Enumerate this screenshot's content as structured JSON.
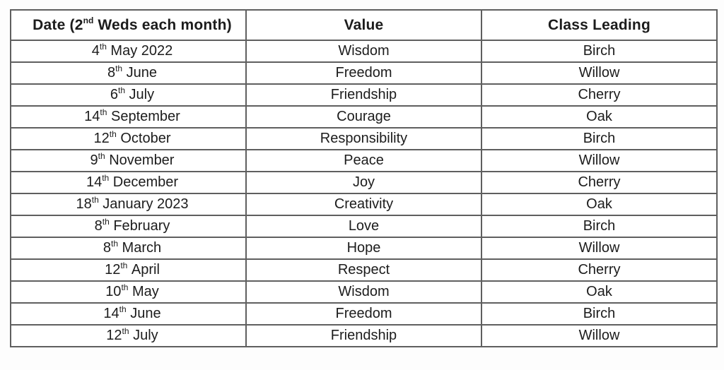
{
  "page": {
    "background_color": "#fdfdfd",
    "text_color": "#1c1c1c",
    "border_color": "#5f5f5f"
  },
  "table": {
    "header": {
      "date": {
        "prefix": "Date (2",
        "sup": "nd",
        "suffix": " Weds each month)"
      },
      "value": "Value",
      "class_leading": "Class Leading"
    },
    "rows": [
      {
        "date_day": "4",
        "date_sup": "th",
        "date_rest": "May 2022",
        "value": "Wisdom",
        "class_leading": "Birch"
      },
      {
        "date_day": "8",
        "date_sup": "th",
        "date_rest": "June",
        "value": "Freedom",
        "class_leading": "Willow"
      },
      {
        "date_day": "6",
        "date_sup": "th",
        "date_rest": "July",
        "value": "Friendship",
        "class_leading": "Cherry"
      },
      {
        "date_day": "14",
        "date_sup": "th",
        "date_rest": "September",
        "value": "Courage",
        "class_leading": "Oak"
      },
      {
        "date_day": "12",
        "date_sup": "th",
        "date_rest": "October",
        "value": "Responsibility",
        "class_leading": "Birch"
      },
      {
        "date_day": "9",
        "date_sup": "th",
        "date_rest": "November",
        "value": "Peace",
        "class_leading": "Willow"
      },
      {
        "date_day": "14",
        "date_sup": "th",
        "date_rest": "December",
        "value": "Joy",
        "class_leading": "Cherry"
      },
      {
        "date_day": "18",
        "date_sup": "th",
        "date_rest": "January 2023",
        "value": "Creativity",
        "class_leading": "Oak"
      },
      {
        "date_day": "8",
        "date_sup": "th",
        "date_rest": "February",
        "value": "Love",
        "class_leading": "Birch"
      },
      {
        "date_day": "8",
        "date_sup": "th",
        "date_rest": "March",
        "value": "Hope",
        "class_leading": "Willow"
      },
      {
        "date_day": "12",
        "date_sup": "th",
        "date_rest": "April",
        "value": "Respect",
        "class_leading": "Cherry"
      },
      {
        "date_day": "10",
        "date_sup": "th",
        "date_rest": "May",
        "value": "Wisdom",
        "class_leading": "Oak"
      },
      {
        "date_day": "14",
        "date_sup": "th",
        "date_rest": "June",
        "value": "Freedom",
        "class_leading": "Birch"
      },
      {
        "date_day": "12",
        "date_sup": "th",
        "date_rest": "July",
        "value": "Friendship",
        "class_leading": "Willow"
      }
    ]
  }
}
